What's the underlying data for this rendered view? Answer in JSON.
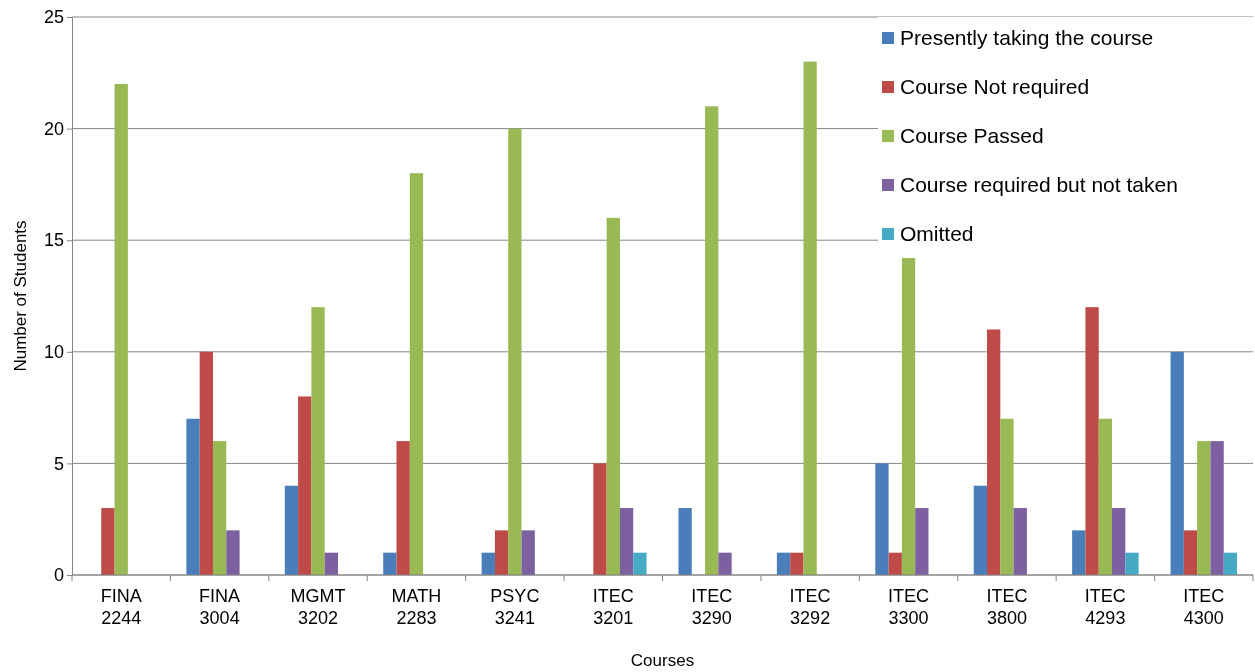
{
  "chart_data": {
    "type": "bar",
    "xlabel": "Courses",
    "ylabel": "Number of Students",
    "categories": [
      "FINA 2244",
      "FINA 3004",
      "MGMT 3202",
      "MATH 2283",
      "PSYC 3241",
      "ITEC 3201",
      "ITEC 3290",
      "ITEC 3292",
      "ITEC 3300",
      "ITEC 3800",
      "ITEC 4293",
      "ITEC 4300"
    ],
    "series": [
      {
        "name": "Presently taking the course",
        "color": "#4a7ebb",
        "values": [
          0,
          7,
          4,
          1,
          1,
          0,
          3,
          1,
          5,
          4,
          2,
          10
        ]
      },
      {
        "name": "Course Not required",
        "color": "#be4b48",
        "values": [
          3,
          10,
          8,
          6,
          2,
          5,
          0,
          1,
          1,
          11,
          12,
          2
        ]
      },
      {
        "name": "Course Passed",
        "color": "#98b954",
        "values": [
          22,
          6,
          12,
          18,
          20,
          16,
          21,
          23,
          14.2,
          7,
          7,
          6
        ]
      },
      {
        "name": "Course required but not taken",
        "color": "#7d60a0",
        "values": [
          0,
          2,
          1,
          0,
          2,
          3,
          1,
          0,
          3,
          3,
          3,
          6
        ]
      },
      {
        "name": "Omitted",
        "color": "#46aac5",
        "values": [
          0,
          0,
          0,
          0,
          0,
          1,
          0,
          0,
          0,
          0,
          1,
          1
        ]
      }
    ],
    "ylim": [
      0,
      25
    ],
    "yticks": [
      0,
      5,
      10,
      15,
      20,
      25
    ],
    "grid": "y",
    "legend": "top right"
  }
}
